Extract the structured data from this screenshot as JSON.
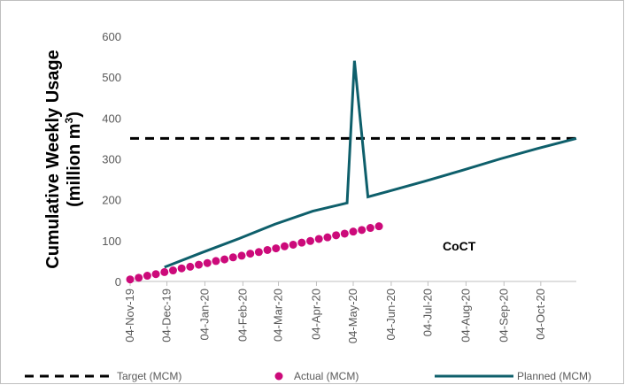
{
  "chart_data": {
    "type": "line",
    "title": "",
    "ylabel_line1": "Cumulative Weekly Usage",
    "ylabel_line2_prefix": "(million m",
    "ylabel_line2_sup": "3",
    "ylabel_line2_suffix": ")",
    "xlabel": "",
    "ylim": [
      0,
      600
    ],
    "y_ticks": [
      "0",
      "100",
      "200",
      "300",
      "400",
      "500",
      "600"
    ],
    "x_ticks": [
      "04-Nov-19",
      "04-Dec-19",
      "04-Jan-20",
      "04-Feb-20",
      "04-Mar-20",
      "04-Apr-20",
      "04-May-20",
      "04-Jun-20",
      "04-Jul-20",
      "04-Aug-20",
      "04-Sep-20",
      "04-Oct-20"
    ],
    "xlim": [
      "2019-11-04",
      "2020-11-02"
    ],
    "grid": false,
    "legend_position": "bottom",
    "annotation": "CoCT",
    "series": [
      {
        "name": "Target (MCM)",
        "style": "dashed",
        "color": "#000000",
        "points": [
          [
            "2019-11-04",
            350
          ],
          [
            "2020-11-02",
            350
          ]
        ]
      },
      {
        "name": "Actual (MCM)",
        "style": "markers",
        "color": "#cc0a7a",
        "points": [
          [
            "2019-11-04",
            5
          ],
          [
            "2019-11-11",
            9
          ],
          [
            "2019-11-18",
            14
          ],
          [
            "2019-11-25",
            18
          ],
          [
            "2019-12-02",
            23
          ],
          [
            "2019-12-09",
            27
          ],
          [
            "2019-12-16",
            32
          ],
          [
            "2019-12-23",
            36
          ],
          [
            "2019-12-30",
            41
          ],
          [
            "2020-01-06",
            45
          ],
          [
            "2020-01-13",
            50
          ],
          [
            "2020-01-20",
            54
          ],
          [
            "2020-01-27",
            59
          ],
          [
            "2020-02-03",
            63
          ],
          [
            "2020-02-10",
            68
          ],
          [
            "2020-02-17",
            72
          ],
          [
            "2020-02-24",
            77
          ],
          [
            "2020-03-02",
            81
          ],
          [
            "2020-03-09",
            86
          ],
          [
            "2020-03-16",
            90
          ],
          [
            "2020-03-23",
            95
          ],
          [
            "2020-03-30",
            99
          ],
          [
            "2020-04-06",
            104
          ],
          [
            "2020-04-13",
            108
          ],
          [
            "2020-04-20",
            113
          ],
          [
            "2020-04-27",
            117
          ],
          [
            "2020-05-04",
            122
          ],
          [
            "2020-05-11",
            126
          ],
          [
            "2020-05-18",
            131
          ],
          [
            "2020-05-25",
            135
          ]
        ]
      },
      {
        "name": "Planned (MCM)",
        "style": "line",
        "color": "#0e5f6b",
        "points": [
          [
            "2019-12-02",
            35
          ],
          [
            "2020-01-01",
            70
          ],
          [
            "2020-02-01",
            105
          ],
          [
            "2020-03-01",
            140
          ],
          [
            "2020-04-01",
            172
          ],
          [
            "2020-04-29",
            192
          ],
          [
            "2020-05-05",
            540
          ],
          [
            "2020-05-16",
            207
          ],
          [
            "2020-06-01",
            220
          ],
          [
            "2020-07-01",
            245
          ],
          [
            "2020-08-01",
            272
          ],
          [
            "2020-09-01",
            300
          ],
          [
            "2020-10-01",
            325
          ],
          [
            "2020-11-02",
            350
          ]
        ]
      }
    ]
  }
}
